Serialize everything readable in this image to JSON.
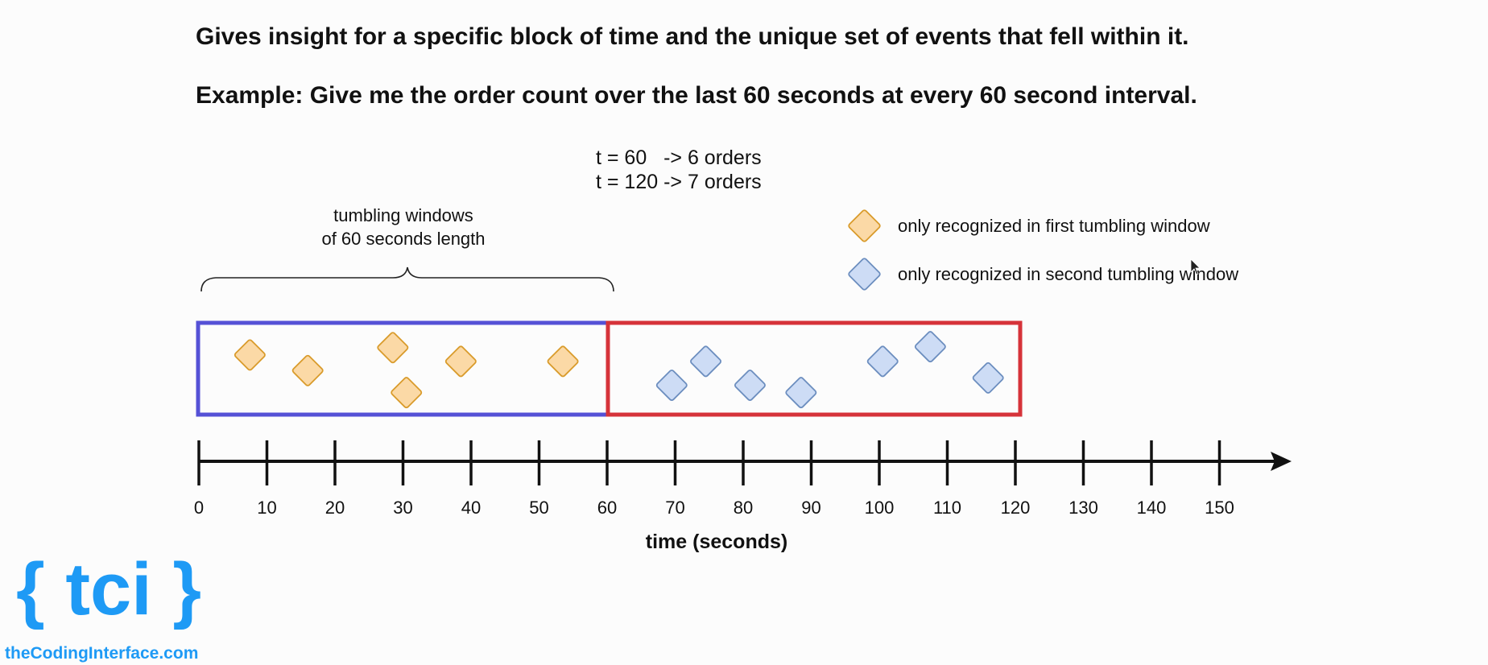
{
  "headings": {
    "line1": "Gives insight for a specific block of time and the unique set of events that fell within it.",
    "line2": "Example: Give me the order count over the last 60 seconds at every 60 second interval."
  },
  "counts": {
    "line1": "t = 60   -> 6 orders",
    "line2": "t = 120 -> 7 orders"
  },
  "window_label": {
    "line1": "tumbling windows",
    "line2": "of 60 seconds length"
  },
  "legend": {
    "first": "only recognized in first tumbling window",
    "second": "only recognized in second tumbling window"
  },
  "colors": {
    "first_fill": "#fbd9a6",
    "first_stroke": "#d99b2b",
    "second_fill": "#cddcf5",
    "second_stroke": "#6c8ebf",
    "window1_border": "#5551d6",
    "window2_border": "#d6333a",
    "logo": "#1e9af5"
  },
  "axis": {
    "label": "time (seconds)",
    "ticks": [
      0,
      10,
      20,
      30,
      40,
      50,
      60,
      70,
      80,
      90,
      100,
      110,
      120,
      130,
      140,
      150
    ]
  },
  "windows": [
    {
      "start": 0,
      "end": 60
    },
    {
      "start": 60,
      "end": 120
    }
  ],
  "events": {
    "first_window": [
      {
        "t": 7.5,
        "lane": 0.35
      },
      {
        "t": 16,
        "lane": 0.52
      },
      {
        "t": 28.5,
        "lane": 0.27
      },
      {
        "t": 30.5,
        "lane": 0.76
      },
      {
        "t": 38.5,
        "lane": 0.42
      },
      {
        "t": 53.5,
        "lane": 0.42
      }
    ],
    "second_window": [
      {
        "t": 69.5,
        "lane": 0.68
      },
      {
        "t": 74.5,
        "lane": 0.42
      },
      {
        "t": 81,
        "lane": 0.68
      },
      {
        "t": 88.5,
        "lane": 0.76
      },
      {
        "t": 100.5,
        "lane": 0.42
      },
      {
        "t": 107.5,
        "lane": 0.26
      },
      {
        "t": 116,
        "lane": 0.6
      }
    ]
  },
  "logo": {
    "mark": "{ tci }",
    "url": "theCodingInterface.com"
  }
}
